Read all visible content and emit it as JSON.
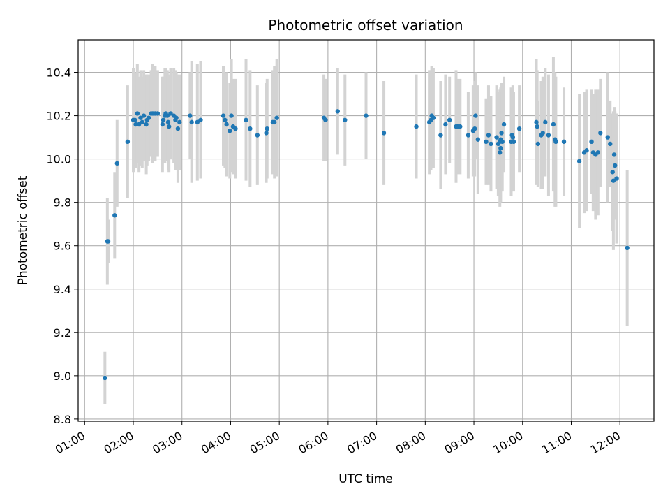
{
  "chart_data": {
    "type": "scatter",
    "title": "Photometric offset variation",
    "xlabel": "UTC time",
    "ylabel": "Photometric offset",
    "x_ticks": [
      "01:00",
      "02:00",
      "03:00",
      "04:00",
      "05:00",
      "06:00",
      "07:00",
      "08:00",
      "09:00",
      "10:00",
      "11:00",
      "12:00"
    ],
    "y_ticks": [
      "8.8",
      "9.0",
      "9.2",
      "9.4",
      "9.6",
      "9.8",
      "10.0",
      "10.2",
      "10.4"
    ],
    "xlim": [
      "00:52",
      "12:42"
    ],
    "ylim": [
      8.79,
      10.55
    ],
    "grid": true,
    "colors": {
      "point": "#1f77b4",
      "errorbar": "#d3d3d3",
      "grid": "#b0b0b0"
    },
    "series": [
      {
        "x": [
          "01:25",
          "01:28",
          "01:29",
          "01:37",
          "01:40",
          "01:53",
          "02:00",
          "02:02",
          "02:03",
          "02:05",
          "02:07",
          "02:09",
          "02:11",
          "02:13",
          "02:16",
          "02:17",
          "02:19",
          "02:22",
          "02:24",
          "02:27",
          "02:30",
          "02:36",
          "02:37",
          "02:39",
          "02:40",
          "02:42",
          "02:43",
          "02:44",
          "02:46",
          "02:50",
          "02:52",
          "02:53",
          "02:55",
          "02:57",
          "03:10",
          "03:12",
          "03:19",
          "03:23",
          "03:51",
          "03:53",
          "03:55",
          "03:59",
          "04:01",
          "04:03",
          "04:06",
          "04:19",
          "04:24",
          "04:33",
          "04:44",
          "04:45",
          "04:52",
          "04:54",
          "04:57",
          "05:55",
          "05:57",
          "06:12",
          "06:21",
          "06:47",
          "07:09",
          "07:49",
          "08:05",
          "08:07",
          "08:08",
          "08:10",
          "08:19",
          "08:25",
          "08:30",
          "08:38",
          "08:40",
          "08:43",
          "08:53",
          "08:59",
          "09:01",
          "09:02",
          "09:05",
          "09:15",
          "09:18",
          "09:21",
          "09:28",
          "09:30",
          "09:32",
          "09:32",
          "09:33",
          "09:33",
          "09:34",
          "09:35",
          "09:37",
          "09:46",
          "09:47",
          "09:48",
          "09:49",
          "09:56",
          "10:17",
          "10:18",
          "10:19",
          "10:23",
          "10:25",
          "10:28",
          "10:32",
          "10:38",
          "10:40",
          "10:41",
          "10:51",
          "11:10",
          "11:16",
          "11:19",
          "11:25",
          "11:27",
          "11:30",
          "11:33",
          "11:36",
          "11:45",
          "11:48",
          "11:51",
          "11:52",
          "11:53",
          "11:54",
          "11:56",
          "12:09"
        ],
        "y": [
          8.99,
          9.62,
          9.62,
          9.74,
          9.98,
          10.08,
          10.18,
          10.18,
          10.16,
          10.21,
          10.16,
          10.19,
          10.17,
          10.2,
          10.16,
          10.18,
          10.19,
          10.21,
          10.21,
          10.21,
          10.21,
          10.16,
          10.18,
          10.2,
          10.21,
          10.2,
          10.17,
          10.15,
          10.21,
          10.2,
          10.18,
          10.19,
          10.14,
          10.17,
          10.2,
          10.17,
          10.17,
          10.18,
          10.2,
          10.18,
          10.16,
          10.13,
          10.2,
          10.15,
          10.14,
          10.18,
          10.14,
          10.11,
          10.12,
          10.14,
          10.17,
          10.17,
          10.19,
          10.19,
          10.18,
          10.22,
          10.18,
          10.2,
          10.12,
          10.15,
          10.17,
          10.18,
          10.2,
          10.19,
          10.11,
          10.16,
          10.18,
          10.15,
          10.15,
          10.15,
          10.11,
          10.13,
          10.14,
          10.2,
          10.09,
          10.08,
          10.11,
          10.07,
          10.1,
          10.07,
          10.08,
          10.03,
          10.09,
          10.05,
          10.12,
          10.08,
          10.16,
          10.08,
          10.11,
          10.1,
          10.08,
          10.14,
          10.17,
          10.15,
          10.07,
          10.11,
          10.12,
          10.17,
          10.11,
          10.16,
          10.09,
          10.08,
          10.08,
          9.99,
          10.03,
          10.04,
          10.08,
          10.03,
          10.02,
          10.03,
          10.12,
          10.1,
          10.07,
          9.94,
          9.9,
          10.02,
          9.97,
          9.91,
          9.59
        ],
        "err": [
          0.12,
          0.2,
          0.1,
          0.2,
          0.2,
          0.26,
          0.24,
          0.22,
          0.2,
          0.23,
          0.22,
          0.22,
          0.21,
          0.21,
          0.23,
          0.21,
          0.2,
          0.2,
          0.23,
          0.22,
          0.2,
          0.22,
          0.2,
          0.22,
          0.21,
          0.21,
          0.22,
          0.21,
          0.21,
          0.22,
          0.23,
          0.21,
          0.25,
          0.22,
          0.2,
          0.28,
          0.27,
          0.27,
          0.23,
          0.22,
          0.24,
          0.22,
          0.26,
          0.22,
          0.23,
          0.28,
          0.27,
          0.23,
          0.23,
          0.23,
          0.24,
          0.26,
          0.27,
          0.2,
          0.19,
          0.2,
          0.21,
          0.2,
          0.24,
          0.24,
          0.24,
          0.23,
          0.23,
          0.23,
          0.25,
          0.23,
          0.2,
          0.26,
          0.22,
          0.22,
          0.2,
          0.21,
          0.22,
          0.2,
          0.25,
          0.2,
          0.23,
          0.22,
          0.24,
          0.24,
          0.24,
          0.25,
          0.24,
          0.25,
          0.23,
          0.23,
          0.22,
          0.25,
          0.21,
          0.24,
          0.23,
          0.2,
          0.29,
          0.26,
          0.2,
          0.25,
          0.26,
          0.25,
          0.28,
          0.31,
          0.31,
          0.3,
          0.25,
          0.31,
          0.28,
          0.28,
          0.24,
          0.27,
          0.3,
          0.29,
          0.25,
          0.3,
          0.2,
          0.27,
          0.32,
          0.22,
          0.25,
          0.3,
          0.36
        ]
      }
    ]
  }
}
